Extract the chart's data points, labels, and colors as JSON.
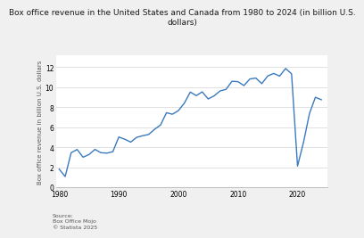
{
  "title": "Box office revenue in the United States and Canada from 1980 to 2024 (in billion U.S.\ndollars)",
  "ylabel": "Box office revenue in billion U.S. dollars",
  "years": [
    1980,
    1981,
    1982,
    1983,
    1984,
    1985,
    1986,
    1987,
    1988,
    1989,
    1990,
    1991,
    1992,
    1993,
    1994,
    1995,
    1996,
    1997,
    1998,
    1999,
    2000,
    2001,
    2002,
    2003,
    2004,
    2005,
    2006,
    2007,
    2008,
    2009,
    2010,
    2011,
    2012,
    2013,
    2014,
    2015,
    2016,
    2017,
    2018,
    2019,
    2020,
    2021,
    2022,
    2023,
    2024
  ],
  "values": [
    1.8,
    1.06,
    3.45,
    3.77,
    3.0,
    3.27,
    3.78,
    3.45,
    3.41,
    3.55,
    5.02,
    4.8,
    4.51,
    4.99,
    5.15,
    5.27,
    5.79,
    6.22,
    7.45,
    7.3,
    7.66,
    8.41,
    9.52,
    9.16,
    9.54,
    8.83,
    9.14,
    9.63,
    9.79,
    10.6,
    10.56,
    10.17,
    10.83,
    10.92,
    10.36,
    11.13,
    11.38,
    11.12,
    11.88,
    11.34,
    2.11,
    4.48,
    7.36,
    9.0,
    8.75
  ],
  "line_color": "#3a7abf",
  "bg_color": "#f0f0f0",
  "plot_bg_color": "#ffffff",
  "yticks": [
    0,
    2,
    4,
    6,
    8,
    10,
    12
  ],
  "ylim": [
    0,
    13.2
  ],
  "xlim": [
    1979.5,
    2025
  ],
  "xtick_positions": [
    1980,
    1990,
    2000,
    2010,
    2020
  ],
  "source_text": "Source:\nBox Office Mojo\n© Statista 2025",
  "title_fontsize": 6.5,
  "ylabel_fontsize": 5.0,
  "tick_fontsize": 5.5,
  "source_fontsize": 4.5
}
